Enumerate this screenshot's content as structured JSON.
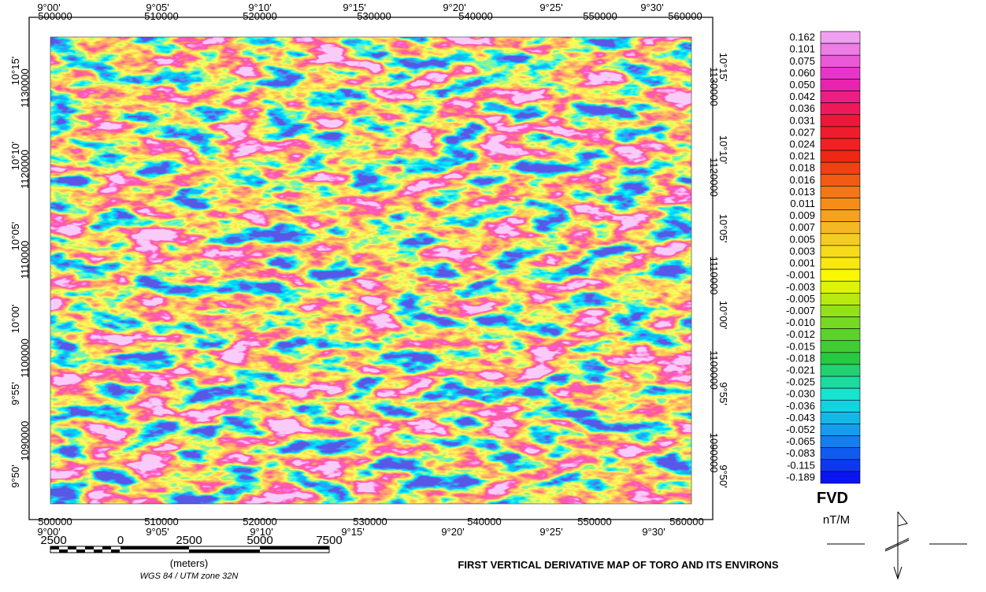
{
  "map": {
    "top_degree_labels": [
      "9°00'",
      "9°05'",
      "9°10'",
      "9°15'",
      "9°20'",
      "9°25'",
      "9°30'"
    ],
    "top_utm_labels": [
      "500000",
      "510000",
      "520000",
      "530000",
      "540000",
      "550000",
      "560000"
    ],
    "bottom_utm_labels": [
      "500000",
      "510000",
      "520000",
      "530000",
      "540000",
      "550000",
      "560000"
    ],
    "bottom_degree_labels": [
      "9°00'",
      "9°05'",
      "9°10'",
      "9°15'",
      "9°20'",
      "9°25'",
      "9°30'"
    ],
    "left_degree_labels": [
      "10°15'",
      "10°10'",
      "10°05'",
      "10°00'",
      "9°55'",
      "9°50'"
    ],
    "left_utm_labels": [
      "1130000",
      "1120000",
      "1110000",
      "1100000",
      "1090000"
    ],
    "right_degree_labels": [
      "10°15'",
      "10°10'",
      "10°05'",
      "10°00'",
      "9°55'",
      "9°50'"
    ],
    "right_utm_labels": [
      "1130000",
      "1120000",
      "1110000",
      "1100000",
      "1090000"
    ]
  },
  "legend": {
    "title": "FVD",
    "unit": "nT/M",
    "labels": [
      "0.162",
      "0.101",
      "0.075",
      "0.060",
      "0.050",
      "0.042",
      "0.036",
      "0.031",
      "0.027",
      "0.024",
      "0.021",
      "0.018",
      "0.016",
      "0.013",
      "0.011",
      "0.009",
      "0.007",
      "0.005",
      "0.003",
      "0.001",
      "-0.001",
      "-0.003",
      "-0.005",
      "-0.007",
      "-0.010",
      "-0.012",
      "-0.015",
      "-0.018",
      "-0.021",
      "-0.025",
      "-0.030",
      "-0.036",
      "-0.043",
      "-0.052",
      "-0.065",
      "-0.083",
      "-0.115",
      "-0.189"
    ]
  },
  "scale_bar": {
    "labels": [
      "2500",
      "0",
      "2500",
      "5000",
      "7500"
    ],
    "unit": "(meters)",
    "projection": "WGS 84 / UTM zone 32N"
  },
  "title": "FIRST VERTICAL DERIVATIVE MAP OF TORO AND ITS ENVIRONS"
}
